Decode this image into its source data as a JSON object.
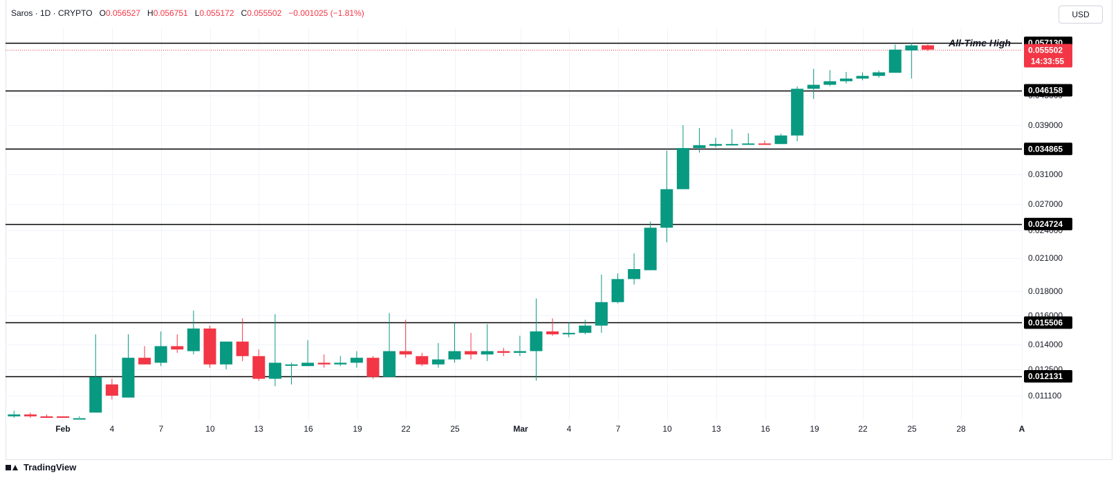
{
  "legend": {
    "symbol": "Saros · 1D · CRYPTO",
    "o_label": "O",
    "o_value": "0.056527",
    "h_label": "H",
    "h_value": "0.056751",
    "l_label": "L",
    "l_value": "0.055172",
    "c_label": "C",
    "c_value": "0.055502",
    "change": "−0.001025 (−1.81%)"
  },
  "currency_button": "USD",
  "branding": "TradingView",
  "colors": {
    "up": "#089981",
    "down": "#f23645",
    "level": "#000000"
  },
  "chart_data": {
    "type": "candlestick",
    "x_ticks": [
      "Feb",
      "4",
      "7",
      "10",
      "13",
      "16",
      "19",
      "22",
      "25",
      "Mar",
      "4",
      "7",
      "10",
      "13",
      "16",
      "19",
      "22",
      "25",
      "28",
      "A"
    ],
    "y_ticks": [
      "0.011100",
      "0.012500",
      "0.014000",
      "0.016000",
      "0.018000",
      "0.021000",
      "0.024000",
      "0.027000",
      "0.031000",
      "0.035000",
      "0.039000",
      "0.045000"
    ],
    "levels": [
      "0.057130",
      "0.046158",
      "0.034865",
      "0.024724",
      "0.015506",
      "0.012131"
    ],
    "current_price": "0.055502",
    "countdown": "14:33:55",
    "annotation": "All-Time High",
    "candles": [
      {
        "o": 0.01,
        "h": 0.0103,
        "l": 0.0099,
        "c": 0.0101
      },
      {
        "o": 0.0101,
        "h": 0.0102,
        "l": 0.0099,
        "c": 0.01
      },
      {
        "o": 0.01,
        "h": 0.0101,
        "l": 0.0098,
        "c": 0.0099
      },
      {
        "o": 0.01,
        "h": 0.01,
        "l": 0.0098,
        "c": 0.0099
      },
      {
        "o": 0.0099,
        "h": 0.01,
        "l": 0.0098,
        "c": 0.0099
      },
      {
        "o": 0.0102,
        "h": 0.0147,
        "l": 0.0102,
        "c": 0.0121
      },
      {
        "o": 0.0117,
        "h": 0.012,
        "l": 0.0109,
        "c": 0.0111
      },
      {
        "o": 0.011,
        "h": 0.0147,
        "l": 0.011,
        "c": 0.0132
      },
      {
        "o": 0.0132,
        "h": 0.0139,
        "l": 0.0128,
        "c": 0.0128
      },
      {
        "o": 0.0129,
        "h": 0.0149,
        "l": 0.0127,
        "c": 0.0139
      },
      {
        "o": 0.0139,
        "h": 0.0147,
        "l": 0.0135,
        "c": 0.0137
      },
      {
        "o": 0.0136,
        "h": 0.0164,
        "l": 0.0134,
        "c": 0.0151
      },
      {
        "o": 0.0151,
        "h": 0.0153,
        "l": 0.0126,
        "c": 0.0128
      },
      {
        "o": 0.0128,
        "h": 0.0142,
        "l": 0.0125,
        "c": 0.0142
      },
      {
        "o": 0.0142,
        "h": 0.0158,
        "l": 0.013,
        "c": 0.0133
      },
      {
        "o": 0.0133,
        "h": 0.0137,
        "l": 0.0119,
        "c": 0.012
      },
      {
        "o": 0.012,
        "h": 0.0161,
        "l": 0.0116,
        "c": 0.0129
      },
      {
        "o": 0.0128,
        "h": 0.0129,
        "l": 0.0117,
        "c": 0.0128
      },
      {
        "o": 0.0127,
        "h": 0.0143,
        "l": 0.0127,
        "c": 0.0129
      },
      {
        "o": 0.0129,
        "h": 0.0134,
        "l": 0.0126,
        "c": 0.0128
      },
      {
        "o": 0.0128,
        "h": 0.0133,
        "l": 0.0127,
        "c": 0.0129
      },
      {
        "o": 0.0129,
        "h": 0.0136,
        "l": 0.0126,
        "c": 0.0132
      },
      {
        "o": 0.0132,
        "h": 0.0133,
        "l": 0.012,
        "c": 0.0121
      },
      {
        "o": 0.0121,
        "h": 0.0162,
        "l": 0.0121,
        "c": 0.0136
      },
      {
        "o": 0.0136,
        "h": 0.0157,
        "l": 0.0132,
        "c": 0.0134
      },
      {
        "o": 0.0133,
        "h": 0.0135,
        "l": 0.0127,
        "c": 0.0128
      },
      {
        "o": 0.0128,
        "h": 0.0141,
        "l": 0.0126,
        "c": 0.0131
      },
      {
        "o": 0.0131,
        "h": 0.0155,
        "l": 0.0129,
        "c": 0.0136
      },
      {
        "o": 0.0136,
        "h": 0.0148,
        "l": 0.0131,
        "c": 0.0134
      },
      {
        "o": 0.0134,
        "h": 0.0154,
        "l": 0.013,
        "c": 0.0136
      },
      {
        "o": 0.0136,
        "h": 0.0138,
        "l": 0.0133,
        "c": 0.0135
      },
      {
        "o": 0.0135,
        "h": 0.0146,
        "l": 0.0133,
        "c": 0.0136
      },
      {
        "o": 0.0136,
        "h": 0.0174,
        "l": 0.0119,
        "c": 0.0149
      },
      {
        "o": 0.0149,
        "h": 0.0158,
        "l": 0.0146,
        "c": 0.0147
      },
      {
        "o": 0.0147,
        "h": 0.0155,
        "l": 0.0145,
        "c": 0.0148
      },
      {
        "o": 0.0148,
        "h": 0.0157,
        "l": 0.0147,
        "c": 0.0153
      },
      {
        "o": 0.0153,
        "h": 0.0195,
        "l": 0.0148,
        "c": 0.0171
      },
      {
        "o": 0.0171,
        "h": 0.0196,
        "l": 0.017,
        "c": 0.0191
      },
      {
        "o": 0.0191,
        "h": 0.0215,
        "l": 0.0186,
        "c": 0.02
      },
      {
        "o": 0.0199,
        "h": 0.025,
        "l": 0.0199,
        "c": 0.0243
      },
      {
        "o": 0.0243,
        "h": 0.0346,
        "l": 0.0227,
        "c": 0.029
      },
      {
        "o": 0.029,
        "h": 0.039,
        "l": 0.029,
        "c": 0.035
      },
      {
        "o": 0.035,
        "h": 0.0385,
        "l": 0.0343,
        "c": 0.0355
      },
      {
        "o": 0.0354,
        "h": 0.0368,
        "l": 0.0351,
        "c": 0.0357
      },
      {
        "o": 0.0356,
        "h": 0.0383,
        "l": 0.0355,
        "c": 0.0357
      },
      {
        "o": 0.0356,
        "h": 0.0376,
        "l": 0.0356,
        "c": 0.0358
      },
      {
        "o": 0.0358,
        "h": 0.0363,
        "l": 0.0356,
        "c": 0.0357
      },
      {
        "o": 0.0357,
        "h": 0.0375,
        "l": 0.0357,
        "c": 0.0372
      },
      {
        "o": 0.0372,
        "h": 0.047,
        "l": 0.0362,
        "c": 0.0465
      },
      {
        "o": 0.0465,
        "h": 0.051,
        "l": 0.0443,
        "c": 0.0474
      },
      {
        "o": 0.0474,
        "h": 0.0507,
        "l": 0.0471,
        "c": 0.0482
      },
      {
        "o": 0.0482,
        "h": 0.0503,
        "l": 0.0477,
        "c": 0.0488
      },
      {
        "o": 0.0488,
        "h": 0.0502,
        "l": 0.0484,
        "c": 0.0494
      },
      {
        "o": 0.0494,
        "h": 0.0506,
        "l": 0.049,
        "c": 0.0502
      },
      {
        "o": 0.0501,
        "h": 0.0567,
        "l": 0.0501,
        "c": 0.0555
      },
      {
        "o": 0.0553,
        "h": 0.0571,
        "l": 0.0488,
        "c": 0.0565
      },
      {
        "o": 0.056527,
        "h": 0.056751,
        "l": 0.055172,
        "c": 0.055502
      }
    ]
  }
}
